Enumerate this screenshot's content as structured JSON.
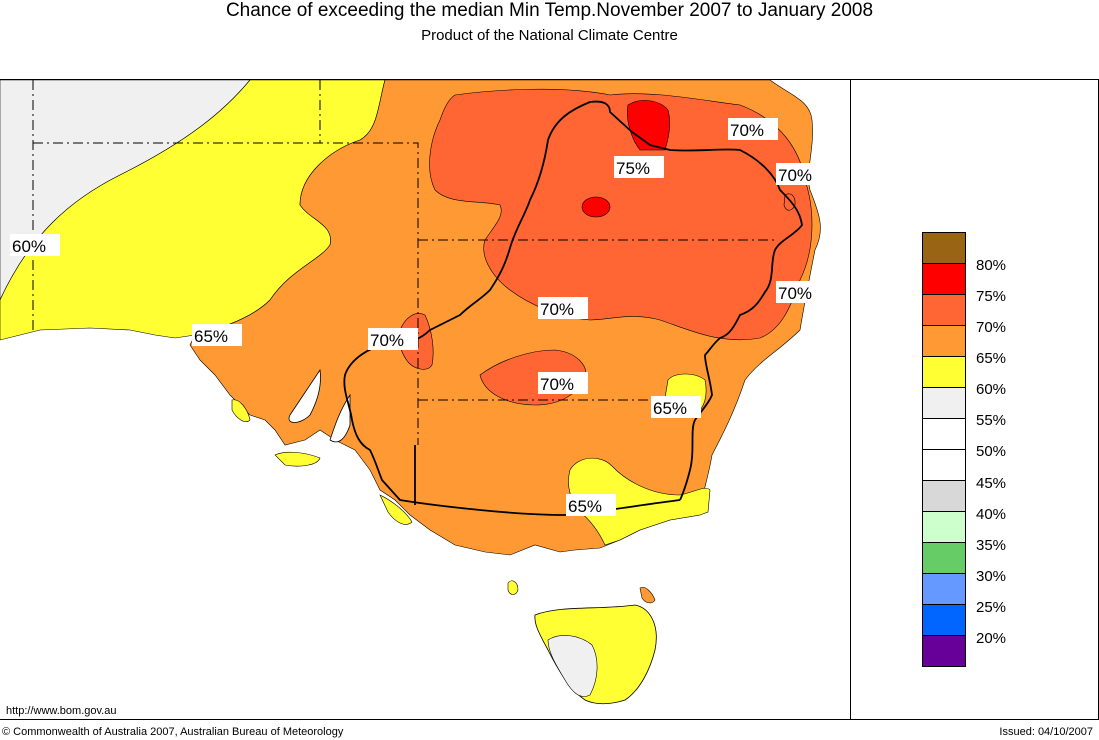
{
  "title": "Chance of exceeding the median Min Temp.November 2007 to January 2008",
  "subtitle": "Product of the National Climate Centre",
  "map_labels": [
    "60%",
    "65%",
    "70%",
    "75%",
    "70%",
    "70%",
    "70%",
    "70%",
    "70%",
    "65%",
    "65%"
  ],
  "legend": {
    "colors": [
      "#996515",
      "#ff0000",
      "#ff6633",
      "#ff9933",
      "#ffff33",
      "#f0f0f0",
      "#ffffff",
      "#ffffff",
      "#d8d8d8",
      "#ccffcc",
      "#66cc66",
      "#6699ff",
      "#0066ff",
      "#660099"
    ],
    "labels": [
      "80%",
      "75%",
      "70%",
      "65%",
      "60%",
      "55%",
      "50%",
      "45%",
      "40%",
      "35%",
      "30%",
      "25%",
      "20%"
    ]
  },
  "footer": {
    "url": "http://www.bom.gov.au",
    "copyright": "© Commonwealth of Australia 2007, Australian Bureau of Meteorology",
    "issued": "Issued: 04/10/2007"
  }
}
